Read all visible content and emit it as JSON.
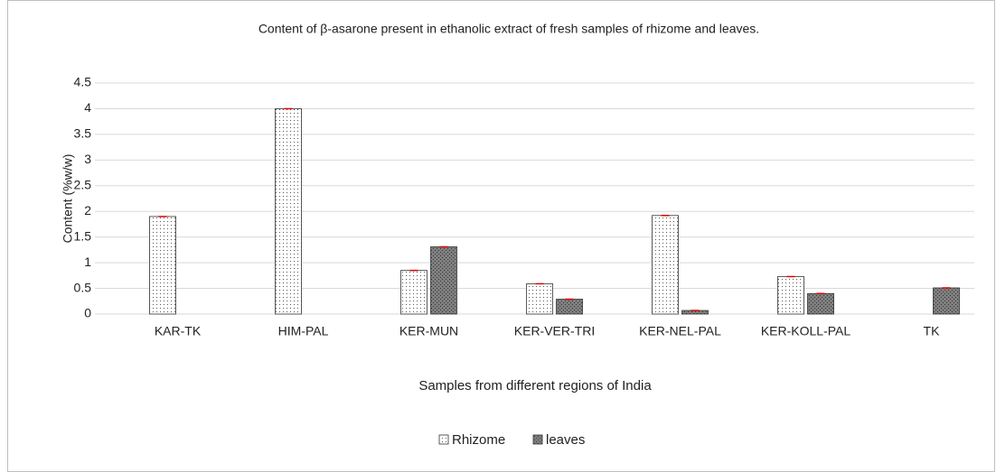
{
  "chart_data": {
    "type": "bar",
    "title": "Content of β-asarone present in ethanolic extract of fresh samples of  rhizome and leaves.",
    "x_label": "Samples from different regions of India",
    "y_label": "Content (%w/w)",
    "categories": [
      "KAR-TK",
      "HIM-PAL",
      "KER-MUN",
      "KER-VER-TRI",
      "KER-NEL-PAL",
      "KER-KOLL-PAL",
      "TK"
    ],
    "series": [
      {
        "name": "Rhizome",
        "color": "#ffffff",
        "values": [
          1.9,
          4.0,
          0.85,
          0.59,
          1.92,
          0.73,
          null
        ]
      },
      {
        "name": "leaves",
        "color": "#7f7f7f",
        "values": [
          null,
          null,
          1.31,
          0.29,
          0.07,
          0.4,
          0.51
        ]
      }
    ],
    "ylim": [
      0,
      4.5
    ],
    "yticks": [
      0,
      0.5,
      1,
      1.5,
      2,
      2.5,
      3,
      3.5,
      4,
      4.5
    ],
    "grid": true,
    "legend": "bottom"
  }
}
